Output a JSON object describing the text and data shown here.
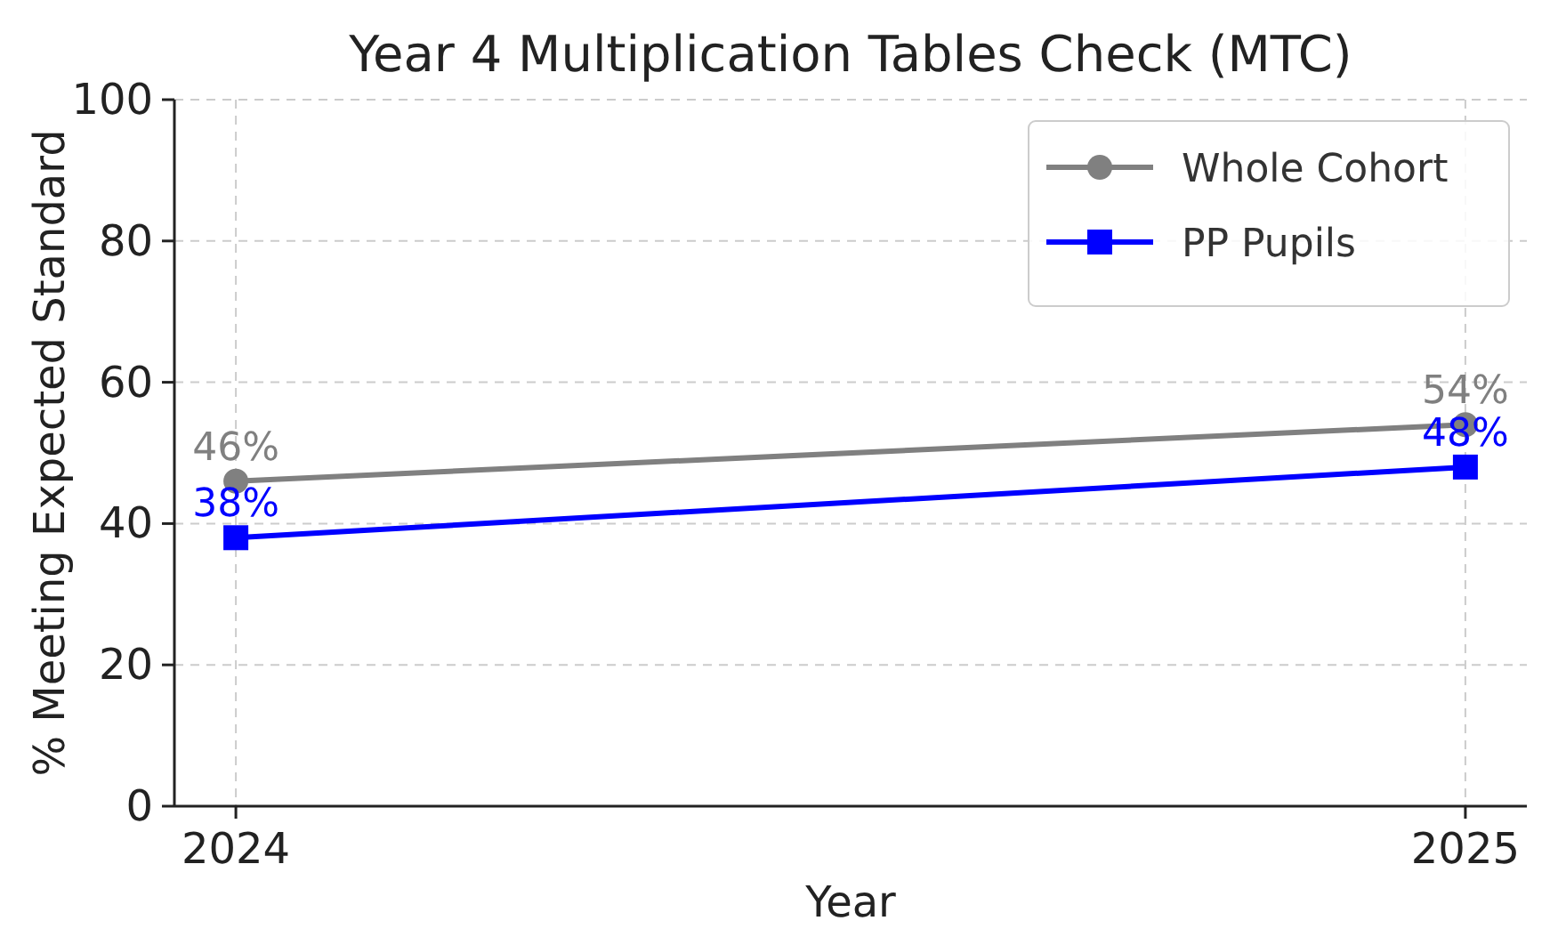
{
  "chart_data": {
    "type": "line",
    "title": "Year 4 Multiplication Tables Check (MTC)",
    "xlabel": "Year",
    "ylabel": "% Meeting Expected Standard",
    "x": [
      2024,
      2025
    ],
    "xlim": [
      2023.95,
      2025.05
    ],
    "xticks": [
      2024,
      2025
    ],
    "ylim": [
      0,
      100
    ],
    "yticks": [
      0,
      20,
      40,
      60,
      80,
      100
    ],
    "series": [
      {
        "name": "Whole Cohort",
        "color": "#808080",
        "values": [
          46,
          54
        ],
        "marker": "circle",
        "value_labels": [
          "46%",
          "54%"
        ]
      },
      {
        "name": "PP Pupils",
        "color": "#0000ff",
        "values": [
          38,
          48
        ],
        "marker": "square",
        "value_labels": [
          "38%",
          "48%"
        ]
      }
    ],
    "grid": true,
    "legend": "top right",
    "line_style": "solid"
  }
}
